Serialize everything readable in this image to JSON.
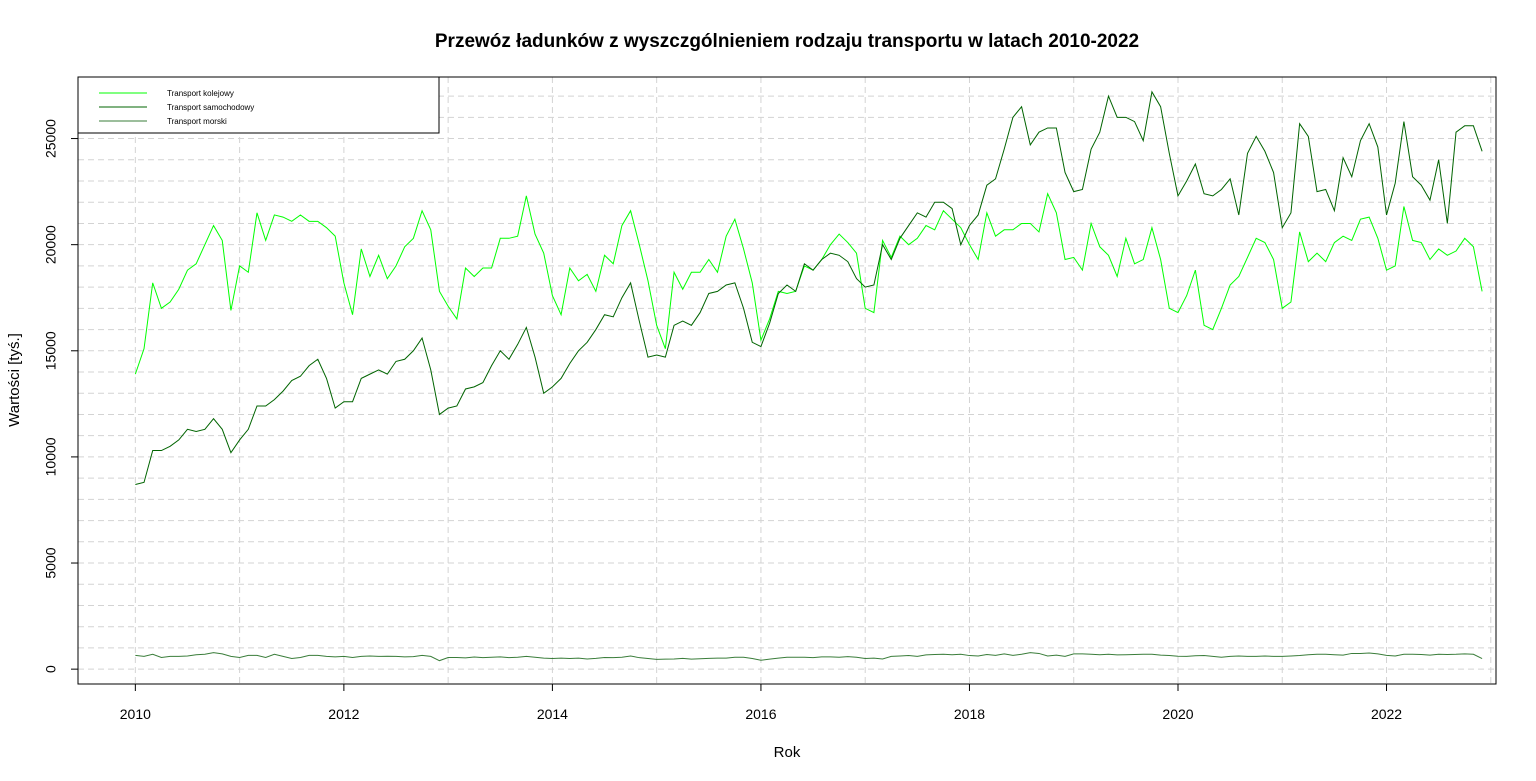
{
  "chart_data": {
    "type": "line",
    "title": "Przewóz ładunków z wyszczgólnieniem rodzaju transportu w latach 2010-2022",
    "xlabel": "Rok",
    "ylabel": "Wartości [tyś.]",
    "xlim": [
      2009.45,
      2023.05
    ],
    "ylim": [
      -700,
      27900
    ],
    "xticks": [
      2010,
      2012,
      2014,
      2016,
      2018,
      2020,
      2022
    ],
    "yticks": [
      0,
      5000,
      10000,
      15000,
      20000,
      25000
    ],
    "grid": true,
    "legend_position": "top-left",
    "start_year": 2010,
    "periods_per_year": 12,
    "series": [
      {
        "name": "Transport kolejowy",
        "color": "#00ff00",
        "values": [
          13900,
          15100,
          18200,
          17000,
          17300,
          17900,
          18800,
          19100,
          20000,
          20900,
          20200,
          16900,
          19000,
          18700,
          21500,
          20200,
          21400,
          21300,
          21100,
          21400,
          21100,
          21100,
          20800,
          20400,
          18200,
          16700,
          19800,
          18500,
          19500,
          18400,
          19000,
          19900,
          20300,
          21600,
          20700,
          17800,
          17100,
          16500,
          18900,
          18500,
          18900,
          18900,
          20300,
          20300,
          20400,
          22300,
          20500,
          19600,
          17600,
          16700,
          18900,
          18300,
          18600,
          17800,
          19500,
          19100,
          20900,
          21600,
          20000,
          18300,
          16200,
          15100,
          18700,
          17900,
          18700,
          18700,
          19300,
          18700,
          20400,
          21200,
          19800,
          18200,
          15500,
          16500,
          17800,
          17700,
          17800,
          19000,
          18800,
          19300,
          20000,
          20500,
          20100,
          19600,
          17000,
          16800,
          20200,
          19400,
          20400,
          20000,
          20300,
          20900,
          20700,
          21600,
          21200,
          20800,
          20000,
          19300,
          21500,
          20400,
          20700,
          20700,
          21000,
          21000,
          20600,
          22400,
          21500,
          19300,
          19400,
          18800,
          21000,
          19900,
          19500,
          18500,
          20300,
          19100,
          19300,
          20800,
          19300,
          17000,
          16800,
          17600,
          18800,
          16200,
          16000,
          17000,
          18100,
          18500,
          19400,
          20300,
          20100,
          19300,
          17000,
          17300,
          20600,
          19200,
          19600,
          19200,
          20100,
          20400,
          20200,
          21200,
          21300,
          20300,
          18800,
          19000,
          21800,
          20200,
          20100,
          19300,
          19800,
          19500,
          19700,
          20300,
          19900,
          17800
        ]
      },
      {
        "name": "Transport samochodowy",
        "color": "#006400",
        "values": [
          8700,
          8800,
          10300,
          10300,
          10500,
          10800,
          11300,
          11200,
          11300,
          11800,
          11300,
          10200,
          10800,
          11300,
          12400,
          12400,
          12700,
          13100,
          13600,
          13800,
          14300,
          14600,
          13700,
          12300,
          12600,
          12600,
          13700,
          13900,
          14100,
          13900,
          14500,
          14600,
          15000,
          15600,
          14100,
          12000,
          12300,
          12400,
          13200,
          13300,
          13500,
          14300,
          15000,
          14600,
          15300,
          16100,
          14700,
          13000,
          13300,
          13700,
          14400,
          15000,
          15400,
          16000,
          16700,
          16600,
          17500,
          18200,
          16400,
          14700,
          14800,
          14700,
          16200,
          16400,
          16200,
          16800,
          17700,
          17800,
          18100,
          18200,
          17000,
          15400,
          15200,
          16300,
          17700,
          18100,
          17800,
          19100,
          18800,
          19300,
          19600,
          19500,
          19200,
          18400,
          18000,
          18100,
          20000,
          19300,
          20300,
          20900,
          21500,
          21300,
          22000,
          22000,
          21700,
          20000,
          20900,
          21400,
          22800,
          23100,
          24500,
          26000,
          26500,
          24700,
          25300,
          25500,
          25500,
          23400,
          22500,
          22600,
          24500,
          25300,
          27000,
          26000,
          26000,
          25800,
          24900,
          27200,
          26500,
          24300,
          22300,
          23000,
          23800,
          22400,
          22300,
          22600,
          23100,
          21400,
          24300,
          25100,
          24400,
          23400,
          20800,
          21500,
          25700,
          25100,
          22500,
          22600,
          21600,
          24100,
          23200,
          24900,
          25700,
          24600,
          21400,
          22900,
          25800,
          23200,
          22800,
          22100,
          24000,
          21000,
          25300,
          25600,
          25600,
          24400
        ]
      },
      {
        "name": "Transport morski",
        "color": "#3a7d3a",
        "values": [
          650,
          600,
          700,
          550,
          600,
          600,
          620,
          680,
          700,
          780,
          720,
          600,
          550,
          650,
          650,
          550,
          700,
          600,
          500,
          550,
          650,
          650,
          600,
          580,
          600,
          550,
          600,
          620,
          600,
          610,
          600,
          580,
          590,
          650,
          600,
          400,
          550,
          550,
          530,
          570,
          540,
          560,
          580,
          540,
          560,
          600,
          560,
          520,
          500,
          520,
          500,
          520,
          480,
          510,
          550,
          540,
          560,
          620,
          540,
          500,
          460,
          470,
          480,
          510,
          470,
          490,
          510,
          520,
          520,
          560,
          560,
          500,
          420,
          470,
          520,
          560,
          560,
          560,
          540,
          580,
          580,
          560,
          590,
          560,
          500,
          520,
          480,
          600,
          620,
          640,
          600,
          670,
          690,
          700,
          680,
          700,
          640,
          620,
          690,
          650,
          720,
          650,
          700,
          780,
          740,
          620,
          660,
          600,
          720,
          720,
          700,
          680,
          700,
          670,
          680,
          690,
          700,
          700,
          660,
          640,
          610,
          600,
          630,
          640,
          600,
          560,
          600,
          620,
          600,
          600,
          620,
          600,
          600,
          620,
          640,
          680,
          700,
          700,
          680,
          660,
          740,
          740,
          760,
          720,
          650,
          620,
          700,
          700,
          690,
          660,
          700,
          690,
          700,
          720,
          700,
          500
        ]
      }
    ]
  }
}
